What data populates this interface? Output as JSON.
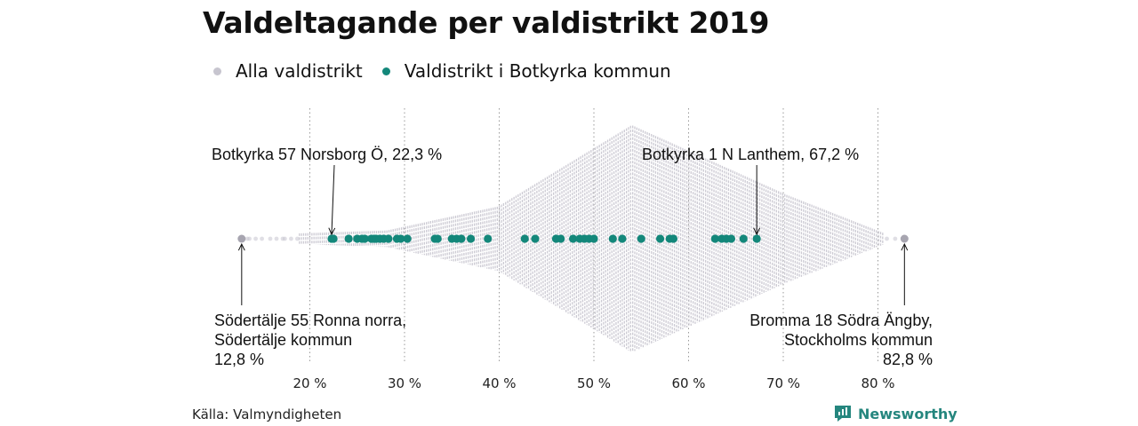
{
  "title": "Valdeltagande per valdistrikt 2019",
  "legend": {
    "all_label": "Alla valdistrikt",
    "all_color": "#c7c5cf",
    "botkyrka_label": "Valdistrikt i Botkyrka kommun",
    "botkyrka_color": "#13877a"
  },
  "annotations": {
    "min_label": "Botkyrka 57 Norsborg Ö, 22,3 %",
    "max_label": "Botkyrka 1 N Lanthem, 67,2 %",
    "low_line1": "Södertälje 55 Ronna norra,",
    "low_line2": "Södertälje kommun",
    "low_line3": "12,8 %",
    "high_line1": "Bromma 18 Södra Ängby,",
    "high_line2": "Stockholms kommun",
    "high_line3": "82,8 %"
  },
  "source": "Källa: Valmyndigheten",
  "brand": "Newsworthy",
  "chart_data": {
    "type": "scatter",
    "subtype": "beeswarm",
    "unit": "%",
    "xlim": [
      12,
      84
    ],
    "x_ticks": [
      20,
      30,
      40,
      50,
      60,
      70,
      80
    ],
    "x_tick_labels": [
      "20 %",
      "30 %",
      "40 %",
      "50 %",
      "60 %",
      "70 %",
      "80 %"
    ],
    "grid": "vertical dotted",
    "legend_position": "top-left",
    "series": [
      {
        "name": "Alla valdistrikt",
        "color": "#c7c5cf",
        "min": 12.8,
        "max": 82.8,
        "peak": 54,
        "distribution": "dense swarm, widest around 50–56 %"
      },
      {
        "name": "Valdistrikt i Botkyrka kommun",
        "color": "#13877a",
        "values": [
          22.3,
          22.5,
          24.1,
          25.0,
          25.5,
          25.8,
          26.5,
          26.8,
          27.0,
          27.4,
          27.8,
          28.3,
          29.2,
          29.6,
          30.3,
          33.2,
          33.5,
          35.0,
          35.5,
          36.0,
          37.0,
          38.8,
          42.7,
          43.8,
          46.0,
          46.5,
          47.8,
          48.5,
          49.0,
          49.5,
          50.0,
          52.0,
          53.0,
          55.0,
          57.0,
          58.0,
          58.4,
          62.8,
          63.5,
          64.0,
          64.5,
          65.8,
          67.2
        ]
      }
    ],
    "highlighted_points": [
      {
        "label": "Södertälje 55 Ronna norra, Södertälje kommun",
        "value": 12.8
      },
      {
        "label": "Botkyrka 57 Norsborg Ö",
        "value": 22.3
      },
      {
        "label": "Botkyrka 1 N Lanthem",
        "value": 67.2
      },
      {
        "label": "Bromma 18 Södra Ängby, Stockholms kommun",
        "value": 82.8
      }
    ]
  }
}
